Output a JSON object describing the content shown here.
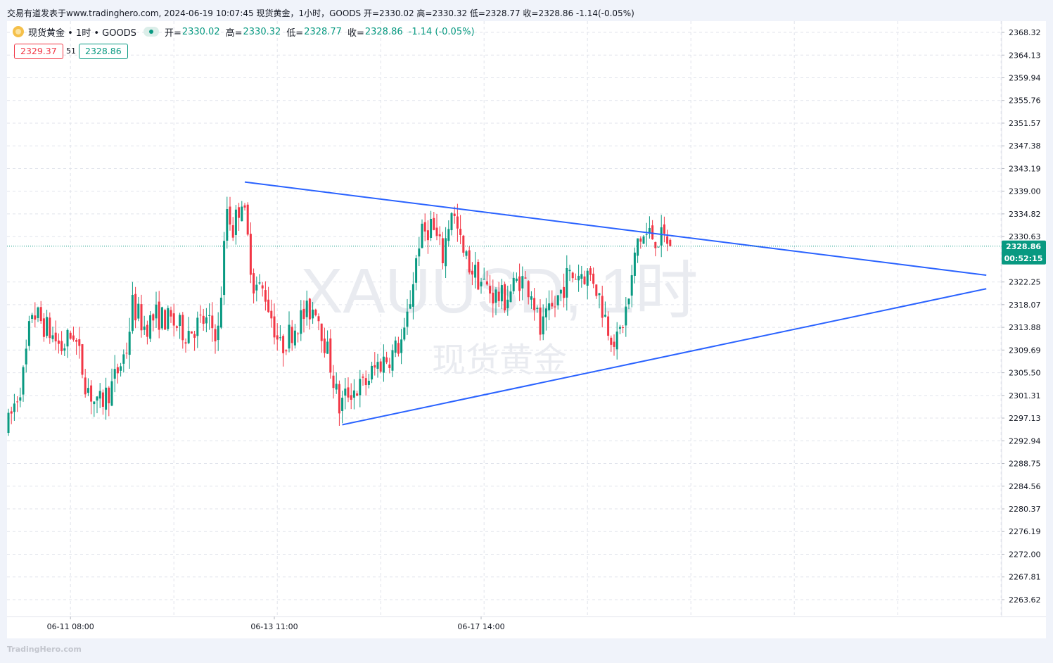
{
  "header": {
    "source_line": "交易有道发表于www.tradinghero.com, 2024-06-19 10:07:45 现货黄金，1小时，GOODS 开=2330.02 高=2330.32 低=2328.77 收=2328.86 -1.14(-0.05%)"
  },
  "legend": {
    "symbol": "现货黄金 • 1时 • GOODS",
    "open_label": "开=",
    "open": "2330.02",
    "high_label": "高=",
    "high": "2330.32",
    "low_label": "低=",
    "low": "2328.77",
    "close_label": "收=",
    "close": "2328.86",
    "change": "-1.14 (-0.05%)"
  },
  "quote": {
    "sell": "2329.37",
    "spread": "51",
    "buy": "2328.86"
  },
  "watermark": {
    "line1": "XAUUSD, 1时",
    "line2": "现货黄金"
  },
  "price_tag": {
    "price": "2328.86",
    "countdown": "00:52:15"
  },
  "footer": {
    "brand": "TradingHero.com"
  },
  "colors": {
    "up": "#089981",
    "down": "#f23645",
    "trendline": "#2962ff",
    "grid": "#e0e3eb",
    "price_tag": "#089981"
  },
  "chart_data": {
    "type": "candlestick",
    "timeframe": "1h",
    "ylim": [
      2260.5,
      2370.4
    ],
    "y_ticks": [
      "2368.32",
      "2364.13",
      "2359.94",
      "2355.76",
      "2351.57",
      "2347.38",
      "2343.19",
      "2339.00",
      "2334.82",
      "2330.63",
      "2322.25",
      "2318.07",
      "2313.88",
      "2309.69",
      "2305.50",
      "2301.31",
      "2297.13",
      "2292.94",
      "2288.75",
      "2284.56",
      "2280.37",
      "2276.19",
      "2272.00",
      "2267.81",
      "2263.62"
    ],
    "x_tick_labels": [
      {
        "label": "06-11 08:00",
        "index": 21
      },
      {
        "label": "06-13 11:00",
        "index": 90
      },
      {
        "label": "06-17 14:00",
        "index": 160
      }
    ],
    "current_price": 2328.86,
    "trendlines": [
      {
        "name": "upper",
        "from": {
          "index": 80,
          "price": 2340.7
        },
        "to": {
          "index": 331,
          "price": 2323.5
        }
      },
      {
        "name": "lower",
        "from": {
          "index": 113,
          "price": 2295.9
        },
        "to": {
          "index": 331,
          "price": 2321.0
        }
      }
    ],
    "anchors": [
      [
        0,
        2296
      ],
      [
        5,
        2305
      ],
      [
        8,
        2317
      ],
      [
        14,
        2313
      ],
      [
        18,
        2310
      ],
      [
        22,
        2313
      ],
      [
        26,
        2304
      ],
      [
        30,
        2299
      ],
      [
        35,
        2303
      ],
      [
        40,
        2310
      ],
      [
        42,
        2318
      ],
      [
        46,
        2314
      ],
      [
        50,
        2316
      ],
      [
        55,
        2315
      ],
      [
        60,
        2313
      ],
      [
        66,
        2315
      ],
      [
        71,
        2313
      ],
      [
        74,
        2336
      ],
      [
        76,
        2332
      ],
      [
        79,
        2338
      ],
      [
        83,
        2322
      ],
      [
        87,
        2320
      ],
      [
        92,
        2310
      ],
      [
        98,
        2315
      ],
      [
        104,
        2318
      ],
      [
        109,
        2307
      ],
      [
        112,
        2299
      ],
      [
        115,
        2302
      ],
      [
        120,
        2303
      ],
      [
        125,
        2307
      ],
      [
        130,
        2309
      ],
      [
        134,
        2312
      ],
      [
        139,
        2330
      ],
      [
        143,
        2333
      ],
      [
        147,
        2327
      ],
      [
        150,
        2336
      ],
      [
        154,
        2327
      ],
      [
        159,
        2323
      ],
      [
        164,
        2320
      ],
      [
        168,
        2319
      ],
      [
        173,
        2323
      ],
      [
        177,
        2321
      ],
      [
        180,
        2313
      ],
      [
        185,
        2318
      ],
      [
        189,
        2323
      ],
      [
        194,
        2324
      ],
      [
        198,
        2323
      ],
      [
        203,
        2314
      ],
      [
        206,
        2311
      ],
      [
        210,
        2319
      ],
      [
        213,
        2330
      ],
      [
        217,
        2331
      ],
      [
        221,
        2330
      ],
      [
        223,
        2330
      ],
      [
        224,
        2328.86
      ]
    ],
    "last_candle": {
      "open": 2330.02,
      "high": 2330.32,
      "low": 2328.77,
      "close": 2328.86
    }
  }
}
